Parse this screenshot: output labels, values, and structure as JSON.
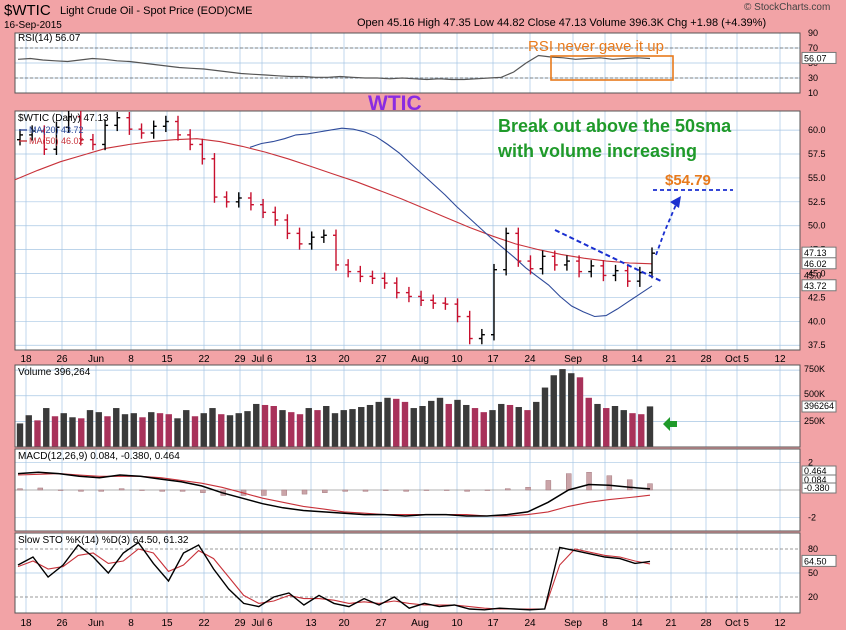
{
  "header": {
    "symbol": "$WTIC",
    "name": "Light Crude Oil - Spot Price (EOD)",
    "exchange": "CME",
    "date": "16-Sep-2015",
    "quote": "Open 45.16 High 47.35 Low 44.82 Close 47.13 Volume 396.3K Chg +1.98 (+4.39%)",
    "watermark": "© StockCharts.com"
  },
  "annotations": {
    "rsi_note": "RSI never gave it up",
    "wtic": "WTIC",
    "breakout_line1": "Break out above the 50sma",
    "breakout_line2": "with volume increasing",
    "target": "$54.79"
  },
  "colors": {
    "background": "#f2a3a6",
    "panel": "#ffffff",
    "grid": "#a6c6e4",
    "ma20": "#2e4a9a",
    "ma50": "#c8323a",
    "up_bar": "#000000",
    "down_bar": "#c8102e",
    "volume_up": "#3a3a3a",
    "volume_down": "#a8325a",
    "annotation_green": "#1f9a2a",
    "annotation_orange": "#e87a1c",
    "annotation_purple": "#8a2be2",
    "annotation_blue": "#1a2fd0"
  },
  "chart_data": [
    {
      "type": "line",
      "panel": "rsi",
      "title": "RSI(14) 56.07",
      "ylim": [
        10,
        90
      ],
      "yticks": [
        10,
        30,
        50,
        70,
        90
      ],
      "last_label": "56.07",
      "values": [
        55,
        56,
        54,
        53,
        52,
        54,
        56,
        55,
        53,
        52,
        50,
        48,
        46,
        44,
        43,
        42,
        40,
        38,
        36,
        35,
        34,
        33,
        32,
        32,
        31,
        31,
        32,
        31,
        30,
        30,
        29,
        30,
        29,
        28,
        29,
        28,
        28,
        29,
        30,
        31,
        38,
        50,
        60,
        58,
        57,
        55,
        56,
        57,
        55,
        56,
        57,
        56
      ]
    },
    {
      "type": "line",
      "panel": "price",
      "title": "$WTIC (Daily) 47.13",
      "legend": [
        "MA(20) 43.72",
        "MA(50) 46.02"
      ],
      "ylim": [
        37,
        62
      ],
      "yticks": [
        37.5,
        40.0,
        42.5,
        45.0,
        47.5,
        50.0,
        52.5,
        55.0,
        57.5,
        60.0
      ],
      "price_labels": [
        "47.13",
        "46.02",
        "45.0",
        "43.72"
      ],
      "x_labels": [
        "18",
        "26",
        "Jun",
        "8",
        "15",
        "22",
        "29",
        "Jul 6",
        "13",
        "20",
        "27",
        "Aug",
        "10",
        "17",
        "24",
        "Sep",
        "8",
        "14",
        "21",
        "28",
        "Oct 5",
        "12"
      ],
      "close": [
        59.5,
        59.9,
        58.0,
        60.3,
        61.4,
        59.0,
        58.5,
        60.5,
        61.3,
        60.1,
        59.7,
        60.4,
        60.9,
        59.5,
        58.5,
        57.0,
        53.0,
        52.5,
        52.9,
        52.2,
        51.4,
        50.6,
        49.2,
        48.1,
        48.8,
        49.0,
        45.9,
        45.2,
        44.7,
        44.5,
        44.0,
        43.0,
        42.6,
        42.2,
        41.9,
        41.8,
        40.5,
        38.2,
        38.6,
        45.4,
        49.2,
        46.3,
        45.5,
        46.8,
        45.9,
        46.3,
        45.2,
        45.8,
        44.8,
        45.3,
        44.2,
        45.1,
        47.13
      ],
      "series": [
        {
          "name": "MA(20) 43.72",
          "values": [
            58.2,
            58.6,
            58.8,
            59.1,
            59.5,
            59.6,
            59.8,
            60.0,
            60.2,
            60.1,
            59.8,
            59.3,
            58.5,
            57.6,
            56.5,
            55.4,
            54.3,
            53.2,
            52.0,
            50.9,
            49.8,
            48.7,
            47.7,
            46.7,
            45.6,
            44.7,
            43.8,
            42.6,
            41.6,
            41.0,
            40.5,
            40.6,
            41.3,
            42.1,
            42.9,
            43.7
          ]
        },
        {
          "name": "MA(50) 46.02",
          "values": [
            54.8,
            55.8,
            56.7,
            57.4,
            58.1,
            58.5,
            58.8,
            59.0,
            59.1,
            58.8,
            58.3,
            57.7,
            57.0,
            56.2,
            55.4,
            54.6,
            53.7,
            52.8,
            51.8,
            50.8,
            49.8,
            48.9,
            48.1,
            47.5,
            47.0,
            46.6,
            46.3,
            46.1,
            46.02
          ]
        }
      ]
    },
    {
      "type": "bar",
      "panel": "volume",
      "title": "Volume 396,264",
      "yticks_labels": [
        "750K",
        "500K",
        "396264",
        "250K"
      ],
      "values": [
        230,
        310,
        260,
        380,
        300,
        330,
        290,
        280,
        360,
        340,
        300,
        380,
        320,
        330,
        290,
        340,
        330,
        320,
        280,
        360,
        300,
        330,
        380,
        320,
        310,
        330,
        350,
        420,
        410,
        400,
        360,
        340,
        320,
        380,
        360,
        400,
        330,
        360,
        370,
        390,
        410,
        440,
        480,
        470,
        440,
        380,
        400,
        450,
        480,
        420,
        460,
        410,
        380,
        340,
        360,
        420,
        410,
        390,
        360,
        440,
        580,
        700,
        760,
        720,
        680,
        480,
        420,
        380,
        400,
        360,
        330,
        320,
        396
      ]
    },
    {
      "type": "line",
      "panel": "macd",
      "title": "MACD(12,26,9) 0.084, -0.380, 0.464",
      "ylim": [
        -3,
        3
      ],
      "yticks": [
        2,
        -2
      ],
      "value_labels": [
        "0.464",
        "0.084",
        "-0.380"
      ],
      "series": [
        {
          "name": "MACD",
          "values": [
            1.2,
            1.3,
            1.2,
            1.0,
            0.9,
            1.1,
            1.0,
            0.8,
            0.6,
            0.3,
            -0.2,
            -0.6,
            -1.0,
            -1.3,
            -1.5,
            -1.6,
            -1.7,
            -1.8,
            -1.8,
            -1.9,
            -1.8,
            -1.8,
            -1.9,
            -1.9,
            -1.8,
            -1.6,
            -0.9,
            0.0,
            0.4,
            0.35,
            0.2,
            0.084
          ]
        },
        {
          "name": "Signal",
          "values": [
            1.1,
            1.15,
            1.2,
            1.1,
            1.0,
            1.0,
            1.0,
            0.9,
            0.7,
            0.5,
            0.2,
            -0.2,
            -0.6,
            -0.9,
            -1.2,
            -1.4,
            -1.6,
            -1.7,
            -1.8,
            -1.8,
            -1.8,
            -1.8,
            -1.8,
            -1.9,
            -1.9,
            -1.8,
            -1.6,
            -1.2,
            -0.9,
            -0.7,
            -0.55,
            -0.38
          ]
        }
      ],
      "histogram": [
        0.1,
        0.15,
        0.0,
        -0.1,
        -0.1,
        0.1,
        0.0,
        -0.1,
        -0.1,
        -0.2,
        -0.4,
        -0.4,
        -0.4,
        -0.4,
        -0.3,
        -0.2,
        -0.1,
        -0.1,
        0.0,
        -0.1,
        0.0,
        0.0,
        -0.1,
        0.0,
        0.1,
        0.2,
        0.7,
        1.2,
        1.3,
        1.05,
        0.75,
        0.464
      ]
    },
    {
      "type": "line",
      "panel": "stochastic",
      "title": "Slow STO %K(14) %D(3) 64.50, 61.32",
      "ylim": [
        0,
        100
      ],
      "yticks": [
        20,
        50,
        80
      ],
      "value_labels": [
        "64.50"
      ],
      "series": [
        {
          "name": "%K",
          "values": [
            60,
            70,
            45,
            60,
            85,
            70,
            50,
            75,
            88,
            62,
            40,
            75,
            85,
            55,
            30,
            12,
            8,
            20,
            25,
            10,
            22,
            12,
            8,
            18,
            10,
            20,
            6,
            12,
            8,
            10,
            5,
            4,
            6,
            5,
            4,
            5,
            82,
            78,
            74,
            70,
            68,
            62,
            64.5
          ]
        },
        {
          "name": "%D",
          "values": [
            58,
            65,
            55,
            58,
            72,
            75,
            62,
            65,
            80,
            75,
            52,
            60,
            78,
            68,
            45,
            22,
            12,
            15,
            22,
            18,
            18,
            16,
            12,
            14,
            12,
            15,
            12,
            10,
            10,
            10,
            8,
            6,
            5,
            5,
            5,
            5,
            60,
            80,
            76,
            72,
            70,
            65,
            61.32
          ]
        }
      ]
    }
  ]
}
